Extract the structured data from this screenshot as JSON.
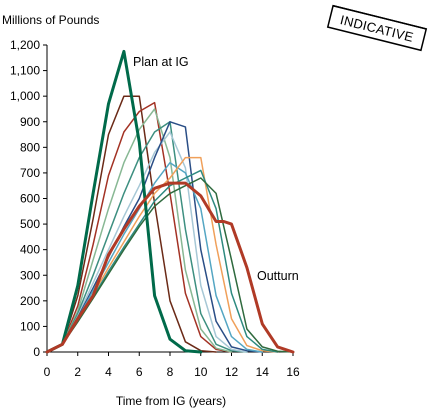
{
  "chart_data": {
    "type": "line",
    "ylabel": "Millions of Pounds",
    "xlabel": "Time from IG (years)",
    "xlim": [
      0,
      16
    ],
    "ylim": [
      0,
      1200
    ],
    "x_ticks": [
      "0",
      "2",
      "4",
      "6",
      "8",
      "10",
      "12",
      "14",
      "16"
    ],
    "y_ticks": [
      "0",
      "100",
      "200",
      "300",
      "400",
      "500",
      "600",
      "700",
      "800",
      "900",
      "1,000",
      "1,100",
      "1,200"
    ],
    "stamp": "INDICATIVE",
    "grid": false,
    "annotations": [
      {
        "text": "Plan at IG",
        "series": "Plan at IG"
      },
      {
        "text": "Outturn",
        "series": "Outturn"
      }
    ],
    "series": [
      {
        "name": "Plan at IG",
        "color": "#006a4a",
        "width": 3,
        "points": [
          [
            0,
            0
          ],
          [
            1,
            30
          ],
          [
            2,
            260
          ],
          [
            3,
            620
          ],
          [
            4,
            970
          ],
          [
            5,
            1175
          ],
          [
            6,
            820
          ],
          [
            7,
            220
          ],
          [
            8,
            50
          ],
          [
            9,
            5
          ],
          [
            10,
            0
          ]
        ]
      },
      {
        "color": "#6b2a17",
        "width": 1.5,
        "points": [
          [
            0,
            0
          ],
          [
            1,
            30
          ],
          [
            2,
            220
          ],
          [
            3,
            520
          ],
          [
            4,
            850
          ],
          [
            5,
            1000
          ],
          [
            6,
            1000
          ],
          [
            7,
            580
          ],
          [
            8,
            200
          ],
          [
            9,
            40
          ],
          [
            10,
            5
          ],
          [
            11,
            0
          ]
        ]
      },
      {
        "color": "#a33224",
        "width": 1.5,
        "points": [
          [
            0,
            0
          ],
          [
            1,
            30
          ],
          [
            2,
            180
          ],
          [
            3,
            420
          ],
          [
            4,
            690
          ],
          [
            5,
            860
          ],
          [
            6,
            940
          ],
          [
            7,
            975
          ],
          [
            8,
            620
          ],
          [
            9,
            230
          ],
          [
            10,
            60
          ],
          [
            11,
            10
          ],
          [
            12,
            0
          ]
        ]
      },
      {
        "color": "#88b894",
        "width": 1.5,
        "points": [
          [
            0,
            0
          ],
          [
            1,
            30
          ],
          [
            2,
            160
          ],
          [
            3,
            360
          ],
          [
            4,
            560
          ],
          [
            5,
            740
          ],
          [
            6,
            870
          ],
          [
            7,
            950
          ],
          [
            8,
            760
          ],
          [
            9,
            320
          ],
          [
            10,
            90
          ],
          [
            11,
            15
          ],
          [
            12,
            0
          ]
        ]
      },
      {
        "color": "#3d8f80",
        "width": 1.5,
        "points": [
          [
            0,
            0
          ],
          [
            1,
            30
          ],
          [
            2,
            150
          ],
          [
            3,
            300
          ],
          [
            4,
            460
          ],
          [
            5,
            620
          ],
          [
            6,
            760
          ],
          [
            7,
            860
          ],
          [
            8,
            900
          ],
          [
            9,
            480
          ],
          [
            10,
            150
          ],
          [
            11,
            30
          ],
          [
            12,
            5
          ],
          [
            13,
            0
          ]
        ]
      },
      {
        "color": "#a7c8d6",
        "width": 1.5,
        "points": [
          [
            0,
            0
          ],
          [
            1,
            30
          ],
          [
            2,
            140
          ],
          [
            3,
            270
          ],
          [
            4,
            400
          ],
          [
            5,
            530
          ],
          [
            6,
            650
          ],
          [
            7,
            780
          ],
          [
            8,
            860
          ],
          [
            9,
            720
          ],
          [
            10,
            260
          ],
          [
            11,
            60
          ],
          [
            12,
            10
          ],
          [
            13,
            0
          ]
        ]
      },
      {
        "color": "#2a4e86",
        "width": 1.5,
        "points": [
          [
            0,
            0
          ],
          [
            1,
            30
          ],
          [
            2,
            135
          ],
          [
            3,
            250
          ],
          [
            4,
            370
          ],
          [
            5,
            490
          ],
          [
            6,
            600
          ],
          [
            7,
            760
          ],
          [
            8,
            900
          ],
          [
            9,
            880
          ],
          [
            10,
            400
          ],
          [
            11,
            120
          ],
          [
            12,
            20
          ],
          [
            13,
            5
          ],
          [
            14,
            0
          ]
        ]
      },
      {
        "color": "#54a6c3",
        "width": 1.5,
        "points": [
          [
            0,
            0
          ],
          [
            1,
            30
          ],
          [
            2,
            130
          ],
          [
            3,
            240
          ],
          [
            4,
            350
          ],
          [
            5,
            460
          ],
          [
            6,
            560
          ],
          [
            7,
            660
          ],
          [
            8,
            740
          ],
          [
            9,
            700
          ],
          [
            10,
            560
          ],
          [
            11,
            220
          ],
          [
            12,
            60
          ],
          [
            13,
            10
          ],
          [
            14,
            0
          ]
        ]
      },
      {
        "color": "#f0a05a",
        "width": 1.5,
        "points": [
          [
            0,
            0
          ],
          [
            1,
            30
          ],
          [
            2,
            125
          ],
          [
            3,
            225
          ],
          [
            4,
            330
          ],
          [
            5,
            430
          ],
          [
            6,
            530
          ],
          [
            7,
            620
          ],
          [
            8,
            680
          ],
          [
            9,
            760
          ],
          [
            10,
            760
          ],
          [
            11,
            420
          ],
          [
            12,
            130
          ],
          [
            13,
            25
          ],
          [
            14,
            5
          ],
          [
            15,
            0
          ]
        ]
      },
      {
        "color": "#2e8a80",
        "width": 1.5,
        "points": [
          [
            0,
            0
          ],
          [
            1,
            30
          ],
          [
            2,
            120
          ],
          [
            3,
            215
          ],
          [
            4,
            315
          ],
          [
            5,
            410
          ],
          [
            6,
            500
          ],
          [
            7,
            590
          ],
          [
            8,
            650
          ],
          [
            9,
            680
          ],
          [
            10,
            710
          ],
          [
            11,
            560
          ],
          [
            12,
            230
          ],
          [
            13,
            60
          ],
          [
            14,
            10
          ],
          [
            15,
            0
          ]
        ]
      },
      {
        "color": "#2f6a3e",
        "width": 1.5,
        "points": [
          [
            0,
            0
          ],
          [
            1,
            30
          ],
          [
            2,
            118
          ],
          [
            3,
            210
          ],
          [
            4,
            305
          ],
          [
            5,
            400
          ],
          [
            6,
            490
          ],
          [
            7,
            570
          ],
          [
            8,
            620
          ],
          [
            9,
            650
          ],
          [
            10,
            680
          ],
          [
            11,
            620
          ],
          [
            12,
            360
          ],
          [
            13,
            90
          ],
          [
            14,
            20
          ],
          [
            15,
            3
          ],
          [
            16,
            0
          ]
        ]
      },
      {
        "name": "Outturn",
        "color": "#b03a26",
        "width": 3,
        "points": [
          [
            0,
            0
          ],
          [
            1,
            30
          ],
          [
            2,
            130
          ],
          [
            3,
            220
          ],
          [
            4,
            380
          ],
          [
            5,
            480
          ],
          [
            6,
            570
          ],
          [
            7,
            640
          ],
          [
            8,
            660
          ],
          [
            9,
            660
          ],
          [
            10,
            610
          ],
          [
            11,
            510
          ],
          [
            11.5,
            510
          ],
          [
            12,
            500
          ],
          [
            13,
            330
          ],
          [
            14,
            110
          ],
          [
            15,
            20
          ],
          [
            16,
            0
          ]
        ]
      }
    ]
  }
}
